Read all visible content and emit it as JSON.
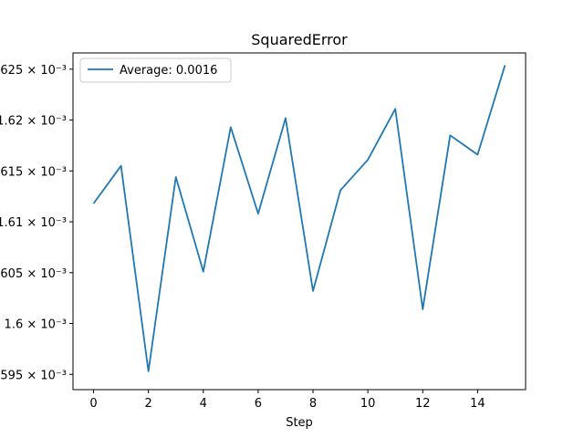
{
  "chart_data": {
    "type": "line",
    "title": "SquaredError",
    "xlabel": "Step",
    "ylabel": "",
    "xlim": [
      -0.75,
      15.75
    ],
    "ylim": [
      0.0015935,
      0.0016266
    ],
    "x_ticks": [
      0,
      2,
      4,
      6,
      8,
      10,
      12,
      14
    ],
    "x_tick_labels": [
      "0",
      "2",
      "4",
      "6",
      "8",
      "10",
      "12",
      "14"
    ],
    "y_ticks": [
      0.001595,
      0.0016,
      0.001605,
      0.00161,
      0.001615,
      0.00162,
      0.001625
    ],
    "y_tick_labels": [
      ".595 × 10⁻³",
      "1.6 × 10⁻³",
      ".605 × 10⁻³",
      "1.61 × 10⁻³",
      ".615 × 10⁻³",
      "1.62 × 10⁻³",
      ".625 × 10⁻³"
    ],
    "grid": false,
    "legend_position": "top-left",
    "series": [
      {
        "name": "Average: 0.0016",
        "color": "#1f77b4",
        "x": [
          0,
          1,
          2,
          3,
          4,
          5,
          6,
          7,
          8,
          9,
          10,
          11,
          12,
          13,
          14,
          15
        ],
        "y": [
          0.0016118,
          0.0016155,
          0.0015953,
          0.0016144,
          0.0016051,
          0.0016193,
          0.0016108,
          0.0016202,
          0.0016032,
          0.0016131,
          0.0016161,
          0.0016211,
          0.0016014,
          0.0016185,
          0.0016166,
          0.0016254
        ]
      }
    ]
  }
}
